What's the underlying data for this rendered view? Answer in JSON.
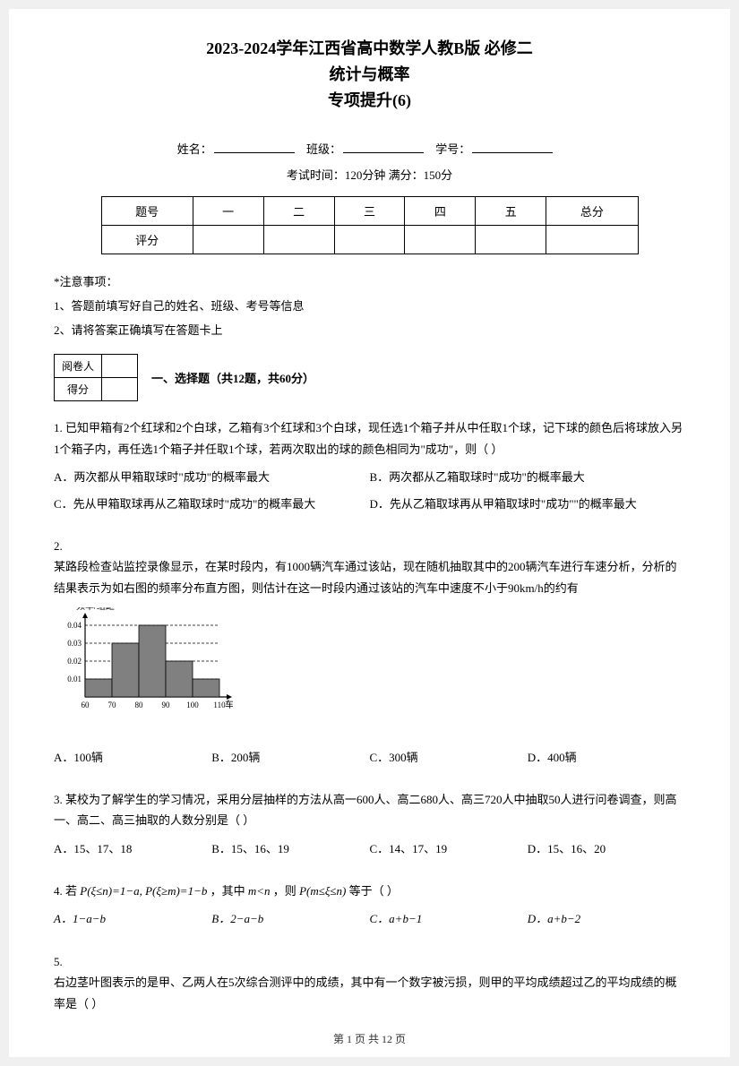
{
  "header": {
    "title_line1": "2023-2024学年江西省高中数学人教B版 必修二",
    "title_line2": "统计与概率",
    "title_line3": "专项提升(6)"
  },
  "info": {
    "name_label": "姓名：",
    "class_label": "班级：",
    "number_label": "学号："
  },
  "exam_time_line": "考试时间：120分钟    满分：150分",
  "score_table": {
    "headers": [
      "题号",
      "一",
      "二",
      "三",
      "四",
      "五",
      "总分"
    ],
    "row_label": "评分"
  },
  "notice_label": "*注意事项：",
  "notices": [
    "1、答题前填写好自己的姓名、班级、考号等信息",
    "2、请将答案正确填写在答题卡上"
  ],
  "grader": {
    "row1": "阅卷人",
    "row2": "得分"
  },
  "section1_heading": "一、选择题（共12题，共60分）",
  "questions": {
    "q1": {
      "stem": "1. 已知甲箱有2个红球和2个白球，乙箱有3个红球和3个白球，现任选1个箱子并从中任取1个球，记下球的颜色后将球放入另1个箱子内，再任选1个箱子并任取1个球，若两次取出的球的颜色相同为\"成功\"，则（      ）",
      "opts": [
        "A．两次都从甲箱取球时\"成功\"的概率最大",
        "B．两次都从乙箱取球时\"成功\"的概率最大",
        "C．先从甲箱取球再从乙箱取球时\"成功\"的概率最大",
        "D．先从乙箱取球再从甲箱取球时\"成功\"\"的概率最大"
      ]
    },
    "q2": {
      "num": "2.",
      "stem": "某路段检查站监控录像显示，在某时段内，有1000辆汽车通过该站，现在随机抽取其中的200辆汽车进行车速分析，分析的结果表示为如右图的频率分布直方图，则估计在这一时段内通过该站的汽车中速度不小于90km/h的约有",
      "opts": [
        "A．100辆",
        "B．200辆",
        "C．300辆",
        "D．400辆"
      ]
    },
    "q3": {
      "stem": "3. 某校为了解学生的学习情况，采用分层抽样的方法从高一600人、高二680人、高三720人中抽取50人进行问卷调查，则高一、高二、高三抽取的人数分别是（    ）",
      "opts": [
        "A．15、17、18",
        "B．15、16、19",
        "C．14、17、19",
        "D．15、16、20"
      ]
    },
    "q4": {
      "stem_pre": "4. 若 ",
      "f1": "P(ξ≤n)=1−a,  P(ξ≥m)=1−b",
      "stem_mid": " ，其中 ",
      "f2": "m<n",
      "stem_mid2": " ，则 ",
      "f3": "P(m≤ξ≤n)",
      "stem_post": " 等于（    ）",
      "opts": [
        "A．1−a−b",
        "B．2−a−b",
        "C．a+b−1",
        "D．a+b−2"
      ]
    },
    "q5": {
      "num": "5.",
      "stem": "右边茎叶图表示的是甲、乙两人在5次综合测评中的成绩，其中有一个数字被污损，则甲的平均成绩超过乙的平均成绩的概率是（  ）"
    }
  },
  "histogram": {
    "ylabel": "频率/组距",
    "xlabel": "车速",
    "y_ticks": [
      "0.01",
      "0.02",
      "0.03",
      "0.04"
    ],
    "x_ticks": [
      "60",
      "70",
      "80",
      "90",
      "100",
      "110"
    ],
    "bars": [
      {
        "x": 60,
        "h": 0.01
      },
      {
        "x": 70,
        "h": 0.03
      },
      {
        "x": 80,
        "h": 0.04
      },
      {
        "x": 90,
        "h": 0.02
      },
      {
        "x": 100,
        "h": 0.01
      }
    ],
    "bar_fill": "#808080",
    "axis_color": "#000000",
    "grid_dash": "3,2"
  },
  "footer": "第 1 页   共 12 页"
}
